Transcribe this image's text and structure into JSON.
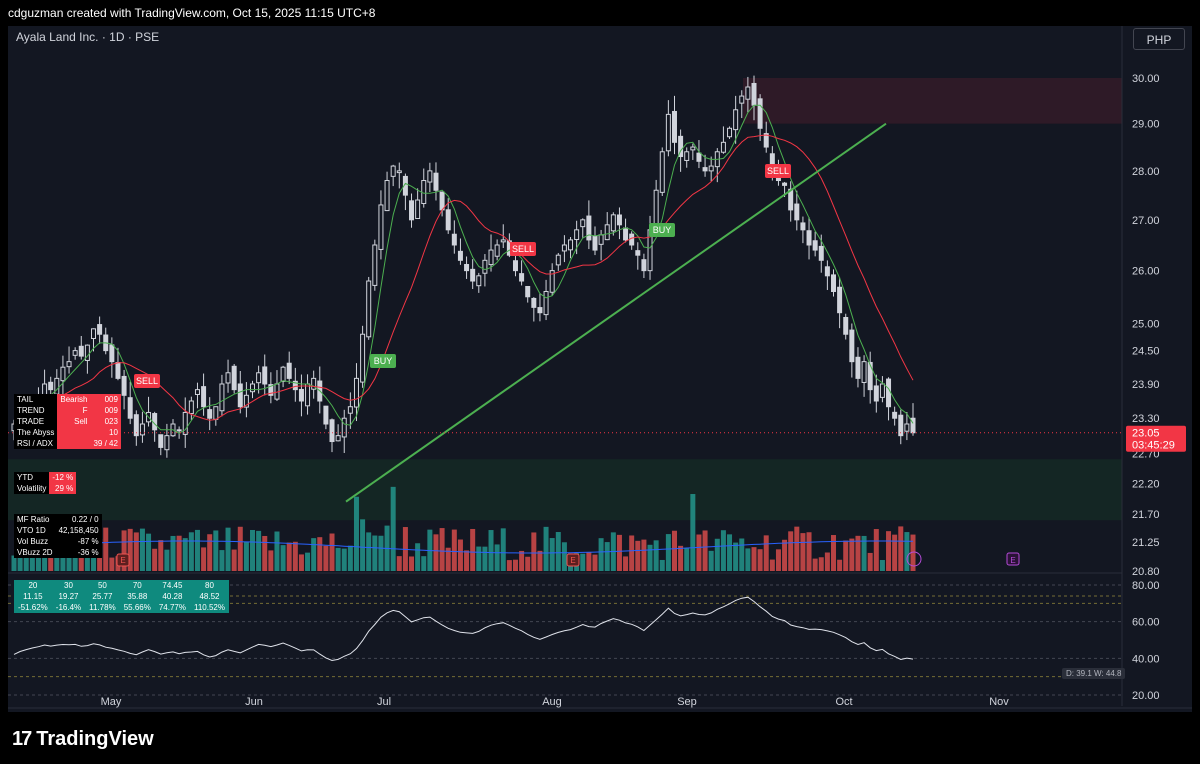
{
  "header": {
    "attribution": "cdguzman created with TradingView.com, Oct 15, 2025 11:15 UTC+8"
  },
  "symbol": {
    "title": "Ayala Land Inc. · 1D · PSE",
    "currency": "PHP"
  },
  "last_price": {
    "value": "23.05",
    "countdown": "03:45:29",
    "color": "#f23645"
  },
  "indicator_panel": [
    {
      "label": "TAIL",
      "value": "Bearish",
      "extra": "009"
    },
    {
      "label": "TREND",
      "value": "F",
      "extra": "009"
    },
    {
      "label": "TRADE",
      "value": "Sell",
      "extra": "023"
    },
    {
      "label": "The Abyss",
      "value": "",
      "extra": "10"
    },
    {
      "label": "RSI / ADX",
      "value": "",
      "extra": "39 / 42"
    }
  ],
  "stats_panel": [
    {
      "label": "YTD",
      "value": "-12 %"
    },
    {
      "label": "Volatility",
      "value": "29 %"
    }
  ],
  "flow_panel": [
    {
      "label": "MF Ratio",
      "value": "0.22 / 0"
    },
    {
      "label": "VTO 1D",
      "value": "42,158,450"
    },
    {
      "label": "Vol Buzz",
      "value": "-87 %"
    },
    {
      "label": "VBuzz 2D",
      "value": "-36 %"
    }
  ],
  "rsi_table": {
    "row1": [
      "20",
      "30",
      "50",
      "70",
      "74.45",
      "80"
    ],
    "row2": [
      "11.15",
      "19.27",
      "25.77",
      "35.88",
      "40.28",
      "48.52"
    ],
    "row3": [
      "-51.62%",
      "-16.4%",
      "11.78%",
      "55.66%",
      "74.77%",
      "110.52%"
    ]
  },
  "dw_label": "D: 39.1  W: 44.8",
  "brand": {
    "name": "TradingView",
    "mark": "17"
  },
  "chart_data": {
    "type": "candlestick",
    "y_axis": {
      "ticks": [
        "30.00",
        "29.00",
        "28.00",
        "27.00",
        "26.00",
        "25.00",
        "24.50",
        "23.90",
        "23.30",
        "22.70",
        "22.20",
        "21.70",
        "21.25",
        "20.80"
      ],
      "scale": "log",
      "range": [
        20.8,
        30.0
      ]
    },
    "x_axis": {
      "ticks": [
        "May",
        "Jun",
        "Jul",
        "Aug",
        "Sep",
        "Oct",
        "Nov"
      ]
    },
    "close": [
      23.2,
      23.4,
      23.5,
      23.6,
      23.7,
      23.9,
      23.8,
      24.0,
      24.2,
      24.3,
      24.5,
      24.4,
      24.6,
      24.9,
      24.8,
      24.5,
      24.3,
      24.0,
      23.7,
      23.3,
      23.0,
      23.2,
      23.4,
      23.1,
      22.8,
      23.0,
      23.2,
      23.1,
      23.4,
      23.6,
      23.8,
      23.5,
      23.3,
      23.5,
      23.9,
      24.1,
      23.8,
      23.5,
      23.7,
      23.9,
      24.1,
      23.9,
      23.7,
      23.9,
      24.2,
      24.0,
      23.8,
      23.6,
      23.9,
      24.0,
      23.6,
      23.2,
      22.9,
      23.0,
      23.3,
      23.5,
      24.0,
      24.8,
      25.8,
      26.5,
      27.3,
      27.8,
      28.1,
      28.0,
      27.5,
      27.0,
      27.4,
      27.8,
      28.0,
      27.6,
      27.2,
      26.8,
      26.5,
      26.2,
      26.0,
      25.8,
      25.9,
      26.2,
      26.4,
      26.5,
      26.6,
      26.3,
      26.0,
      25.8,
      25.5,
      25.3,
      25.2,
      25.6,
      26.0,
      26.3,
      26.5,
      26.6,
      26.8,
      27.0,
      26.6,
      26.4,
      26.7,
      26.9,
      27.1,
      26.9,
      26.6,
      26.5,
      26.3,
      26.0,
      26.8,
      27.6,
      28.4,
      29.2,
      28.6,
      28.3,
      28.4,
      28.5,
      28.2,
      28.0,
      28.1,
      28.4,
      28.6,
      28.9,
      29.3,
      29.6,
      29.8,
      29.4,
      28.9,
      28.5,
      28.0,
      27.8,
      27.7,
      27.2,
      27.0,
      26.8,
      26.5,
      26.4,
      26.2,
      25.9,
      25.6,
      25.2,
      24.8,
      24.3,
      24.0,
      24.3,
      23.8,
      23.6,
      23.9,
      23.5,
      23.3,
      23.0,
      23.2,
      23.05
    ],
    "series": [
      {
        "name": "Fast MA",
        "color": "#4caf50"
      },
      {
        "name": "Slow MA",
        "color": "#f23645"
      },
      {
        "name": "Volume MA",
        "color": "#2962ff"
      }
    ],
    "signals": [
      {
        "label": "SELL",
        "color": "#f23645"
      },
      {
        "label": "BUY",
        "color": "#4caf50"
      },
      {
        "label": "SELL",
        "color": "#f23645"
      },
      {
        "label": "BUY",
        "color": "#4caf50"
      },
      {
        "label": "SELL",
        "color": "#f23645"
      }
    ],
    "trendline": {
      "from": 21.9,
      "to": 29.0,
      "color": "#4caf50"
    },
    "resistance_zone": [
      29.0,
      30.0
    ],
    "support_zone": [
      21.6,
      22.6
    ],
    "rsi_levels": [
      "80.00",
      "60.00",
      "40.00",
      "20.00"
    ],
    "earnings_marker": "E",
    "colors": {
      "up": "#26a69a",
      "down": "#ef5350",
      "candle": "#d1d4dc",
      "background": "#131722"
    }
  }
}
